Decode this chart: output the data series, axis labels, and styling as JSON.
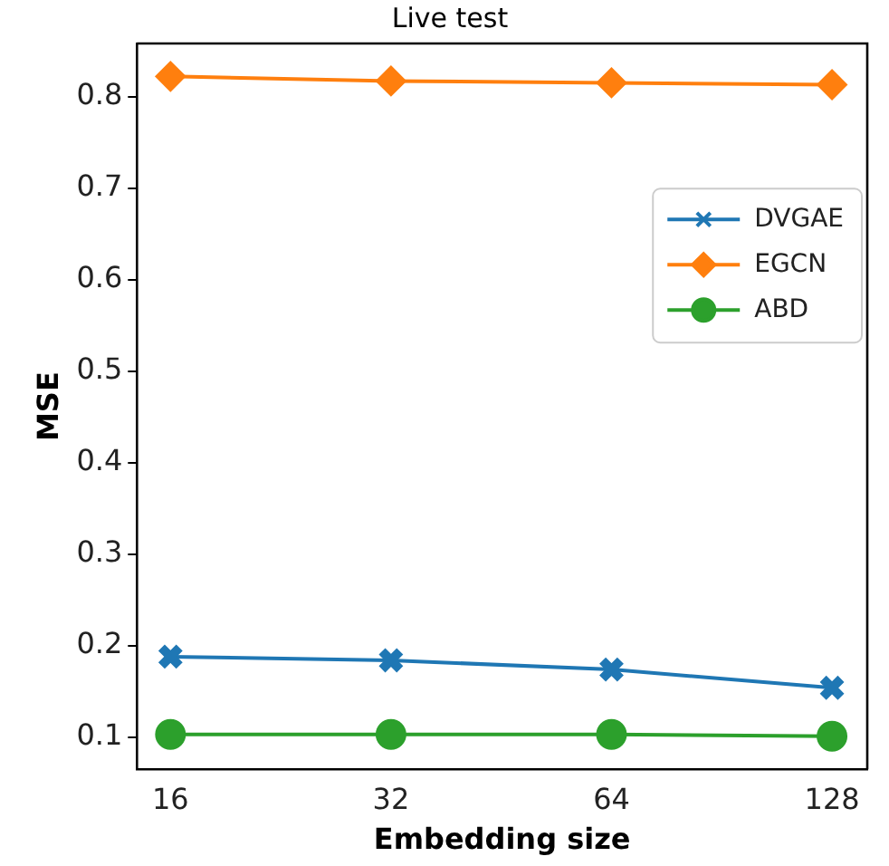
{
  "chart_data": {
    "type": "line",
    "title": "Live test",
    "xlabel": "Embedding size",
    "ylabel": "MSE",
    "x": [
      16,
      32,
      64,
      128
    ],
    "log": "x",
    "xlim": [
      14.4,
      143
    ],
    "xticks": [
      16,
      32,
      64,
      128
    ],
    "ylim": [
      0.065,
      0.858
    ],
    "yticks": [
      0.1,
      0.2,
      0.3,
      0.4,
      0.5,
      0.6,
      0.7,
      0.8
    ],
    "legend": "right",
    "grid": false,
    "line_style": "solid",
    "series": [
      {
        "name": "DVGAE",
        "color": "#1f77b4",
        "marker": "cross",
        "values": [
          0.188,
          0.184,
          0.174,
          0.154
        ]
      },
      {
        "name": "EGCN",
        "color": "#ff7f0e",
        "marker": "diamond",
        "values": [
          0.822,
          0.817,
          0.815,
          0.813
        ]
      },
      {
        "name": "ABD",
        "color": "#2ca02c",
        "marker": "circle",
        "values": [
          0.103,
          0.103,
          0.103,
          0.101
        ]
      }
    ]
  }
}
